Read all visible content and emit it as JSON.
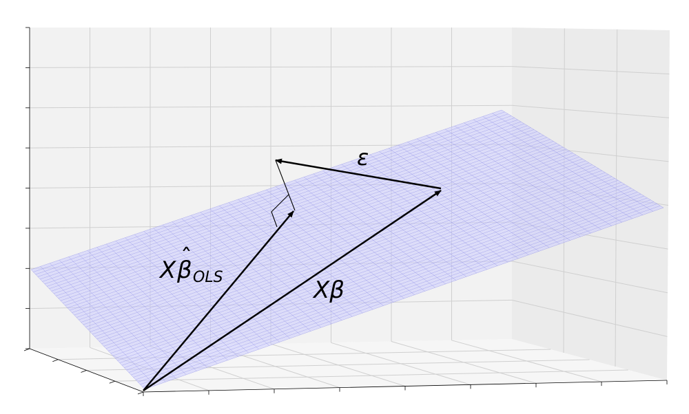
{
  "labels": {
    "epsilon": "ε",
    "xbeta_hat_X": "X",
    "xbeta_hat_beta": "β",
    "xbeta_hat_hat": "ˆ",
    "xbeta_hat_sub": "OLS",
    "xbeta": "Xβ"
  },
  "colors": {
    "plane_fill": "#ccccff",
    "plane_mesh": "#8a8ae6",
    "grid": "#c8c8c8",
    "pane_back": "#f2f2f2",
    "pane_side": "#ebebeb",
    "pane_floor": "#f5f5f5",
    "vector": "#000000"
  },
  "mesh_divisions": 50
}
